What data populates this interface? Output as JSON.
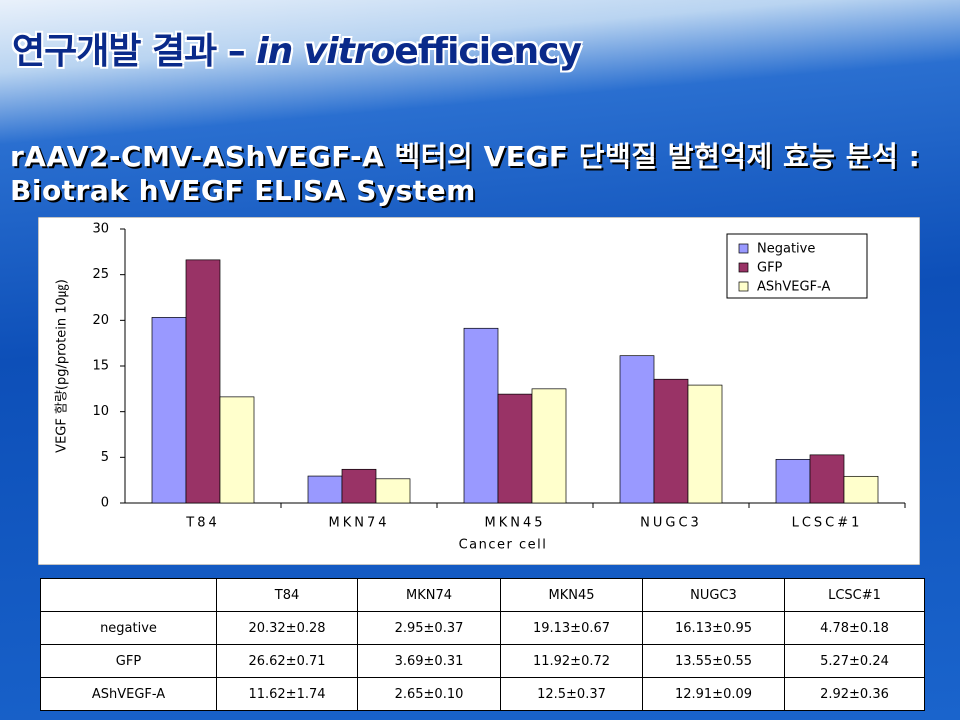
{
  "slide": {
    "title": "연구개발 결과 – ",
    "title_italic": "in vitro",
    "title_end": "efficiency",
    "subtitle": "rAAV2-CMV-AShVEGF-A 벡터의 VEGF 단백질 발현억제 효능 분석 : Biotrak hVEGF ELISA System"
  },
  "chart_data": {
    "type": "bar",
    "x_label": "Cancer cell",
    "y_label": "VEGF 함량(pg/protein 10㎍)",
    "categories": [
      "T84",
      "MKN74",
      "MKN45",
      "NUGC3",
      "LCSC#1"
    ],
    "series": [
      {
        "name": "Negative",
        "color": "#9999ff",
        "values": [
          20.32,
          2.95,
          19.13,
          16.13,
          4.78
        ]
      },
      {
        "name": "GFP",
        "color": "#993366",
        "values": [
          26.62,
          3.69,
          11.92,
          13.55,
          5.27
        ]
      },
      {
        "name": "AShVEGF-A",
        "color": "#ffffcc",
        "values": [
          11.62,
          2.65,
          12.5,
          12.91,
          2.92
        ]
      }
    ],
    "ylim": [
      0,
      30
    ],
    "yticks": [
      0,
      5,
      10,
      15,
      20,
      25,
      30
    ],
    "grid": false,
    "legend": "upper right"
  },
  "table": {
    "header": [
      "",
      "T84",
      "MKN74",
      "MKN45",
      "NUGC3",
      "LCSC#1"
    ],
    "rows": [
      [
        "negative",
        "20.32±0.28",
        "2.95±0.37",
        "19.13±0.67",
        "16.13±0.95",
        "4.78±0.18"
      ],
      [
        "GFP",
        "26.62±0.71",
        "3.69±0.31",
        "11.92±0.72",
        "13.55±0.55",
        "5.27±0.24"
      ],
      [
        "AShVEGF-A",
        "11.62±1.74",
        "2.65±0.10",
        "12.5±0.37",
        "12.91±0.09",
        "2.92±0.36"
      ]
    ]
  }
}
